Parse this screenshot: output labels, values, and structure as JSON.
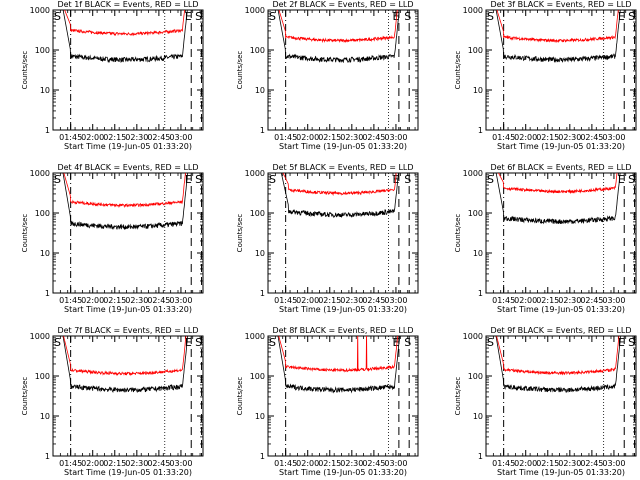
{
  "chart_data": [
    {
      "type": "line",
      "title": "Det 1f BLACK = Events, RED = LLD",
      "xlabel": "Start Time (19-Jun-05 01:33:20)",
      "ylabel": "Counts/sec",
      "ylim": [
        1,
        1000
      ],
      "yscale": "log",
      "yticks": [
        "1",
        "10",
        "100",
        "1000"
      ],
      "xticks": [
        "01:45",
        "02:00",
        "02:15",
        "02:30",
        "02:45",
        "03:00"
      ],
      "xtick_min": [
        12,
        27,
        42,
        57,
        72,
        87
      ],
      "xrange_min": [
        0,
        102
      ],
      "markers": [
        "S",
        "E",
        "S"
      ],
      "marker_min": [
        0,
        89,
        96
      ],
      "dotted_min": [
        76
      ],
      "dashdot_min": [
        12
      ],
      "dashed_min": [
        94,
        101
      ],
      "series": [
        {
          "name": "Events",
          "color": "#000000",
          "level": 70,
          "peak_min": 6,
          "rise_min": 88
        },
        {
          "name": "LLD",
          "color": "#ff0000",
          "level": 310,
          "peak_min": 6,
          "rise_min": 88
        }
      ]
    },
    {
      "type": "line",
      "title": "Det 2f BLACK = Events, RED = LLD",
      "xlabel": "Start Time (19-Jun-05 01:33:20)",
      "ylabel": "Counts/sec",
      "ylim": [
        1,
        1000
      ],
      "yscale": "log",
      "yticks": [
        "1",
        "10",
        "100",
        "1000"
      ],
      "xticks": [
        "01:45",
        "02:00",
        "02:15",
        "02:30",
        "02:45",
        "03:00"
      ],
      "xtick_min": [
        12,
        27,
        42,
        57,
        72,
        87
      ],
      "xrange_min": [
        0,
        102
      ],
      "markers": [
        "S",
        "E",
        "S"
      ],
      "marker_min": [
        0,
        84,
        92
      ],
      "dotted_min": [
        82
      ],
      "dashdot_min": [
        12
      ],
      "dashed_min": [
        89,
        96
      ],
      "series": [
        {
          "name": "Events",
          "color": "#000000",
          "level": 70,
          "peak_min": 6,
          "rise_min": 86
        },
        {
          "name": "LLD",
          "color": "#ff0000",
          "level": 210,
          "peak_min": 6,
          "rise_min": 86
        }
      ]
    },
    {
      "type": "line",
      "title": "Det 3f BLACK = Events, RED = LLD",
      "xlabel": "Start Time (19-Jun-05 01:33:20)",
      "ylabel": "Counts/sec",
      "ylim": [
        1,
        1000
      ],
      "yscale": "log",
      "yticks": [
        "1",
        "10",
        "100",
        "1000"
      ],
      "xticks": [
        "01:45",
        "02:00",
        "02:15",
        "02:30",
        "02:45",
        "03:00"
      ],
      "xtick_min": [
        12,
        27,
        42,
        57,
        72,
        87
      ],
      "xrange_min": [
        0,
        102
      ],
      "markers": [
        "S",
        "E",
        "S"
      ],
      "marker_min": [
        0,
        89,
        96
      ],
      "dotted_min": [
        80
      ],
      "dashdot_min": [
        12
      ],
      "dashed_min": [
        94,
        101
      ],
      "series": [
        {
          "name": "Events",
          "color": "#000000",
          "level": 70,
          "peak_min": 6,
          "rise_min": 88
        },
        {
          "name": "LLD",
          "color": "#ff0000",
          "level": 210,
          "peak_min": 6,
          "rise_min": 88
        }
      ]
    },
    {
      "type": "line",
      "title": "Det 4f BLACK = Events, RED = LLD",
      "xlabel": "Start Time (19-Jun-05 01:33:20)",
      "ylabel": "Counts/sec",
      "ylim": [
        1,
        1000
      ],
      "yscale": "log",
      "yticks": [
        "1",
        "10",
        "100",
        "1000"
      ],
      "xticks": [
        "01:45",
        "02:00",
        "02:15",
        "02:30",
        "02:45",
        "03:00"
      ],
      "xtick_min": [
        12,
        27,
        42,
        57,
        72,
        87
      ],
      "xrange_min": [
        0,
        102
      ],
      "markers": [
        "S",
        "E",
        "S"
      ],
      "marker_min": [
        0,
        89,
        96
      ],
      "dotted_min": [
        76
      ],
      "dashdot_min": [
        12
      ],
      "dashed_min": [
        94,
        101
      ],
      "series": [
        {
          "name": "Events",
          "color": "#000000",
          "level": 55,
          "peak_min": 6,
          "rise_min": 88
        },
        {
          "name": "LLD",
          "color": "#ff0000",
          "level": 190,
          "peak_min": 6,
          "rise_min": 88
        }
      ]
    },
    {
      "type": "line",
      "title": "Det 5f BLACK = Events, RED = LLD",
      "xlabel": "Start Time (19-Jun-05 01:33:20)",
      "ylabel": "Counts/sec",
      "ylim": [
        1,
        1000
      ],
      "yscale": "log",
      "yticks": [
        "1",
        "10",
        "100",
        "1000"
      ],
      "xticks": [
        "01:45",
        "02:00",
        "02:15",
        "02:30",
        "02:45",
        "03:00"
      ],
      "xtick_min": [
        12,
        27,
        42,
        57,
        72,
        87
      ],
      "xrange_min": [
        0,
        102
      ],
      "markers": [
        "S",
        "E",
        "S"
      ],
      "marker_min": [
        0,
        84,
        92
      ],
      "dotted_min": [
        82
      ],
      "dashdot_min": [
        12
      ],
      "dashed_min": [
        89,
        96
      ],
      "series": [
        {
          "name": "Events",
          "color": "#000000",
          "level": 110,
          "peak_min": 8,
          "rise_min": 86
        },
        {
          "name": "LLD",
          "color": "#ff0000",
          "level": 380,
          "peak_min": 8,
          "rise_min": 86
        }
      ]
    },
    {
      "type": "line",
      "title": "Det 6f BLACK = Events, RED = LLD",
      "xlabel": "Start Time (19-Jun-05 01:33:20)",
      "ylabel": "Counts/sec",
      "ylim": [
        1,
        1000
      ],
      "yscale": "log",
      "yticks": [
        "1",
        "10",
        "100",
        "1000"
      ],
      "xticks": [
        "01:45",
        "02:00",
        "02:15",
        "02:30",
        "02:45",
        "03:00"
      ],
      "xtick_min": [
        12,
        27,
        42,
        57,
        72,
        87
      ],
      "xrange_min": [
        0,
        102
      ],
      "markers": [
        "S",
        "E",
        "S"
      ],
      "marker_min": [
        0,
        89,
        96
      ],
      "dotted_min": [
        80
      ],
      "dashdot_min": [
        12
      ],
      "dashed_min": [
        94,
        101
      ],
      "series": [
        {
          "name": "Events",
          "color": "#000000",
          "level": 75,
          "peak_min": 6,
          "rise_min": 88
        },
        {
          "name": "LLD",
          "color": "#ff0000",
          "level": 420,
          "peak_min": 6,
          "rise_min": 88
        }
      ]
    },
    {
      "type": "line",
      "title": "Det 7f BLACK = Events, RED = LLD",
      "xlabel": "Start Time (19-Jun-05 01:33:20)",
      "ylabel": "Counts/sec",
      "ylim": [
        1,
        1000
      ],
      "yscale": "log",
      "yticks": [
        "1",
        "10",
        "100",
        "1000"
      ],
      "xticks": [
        "01:45",
        "02:00",
        "02:15",
        "02:30",
        "02:45",
        "03:00"
      ],
      "xtick_min": [
        12,
        27,
        42,
        57,
        72,
        87
      ],
      "xrange_min": [
        0,
        102
      ],
      "markers": [
        "S",
        "E",
        "S"
      ],
      "marker_min": [
        0,
        89,
        96
      ],
      "dotted_min": [
        76
      ],
      "dashdot_min": [
        12
      ],
      "dashed_min": [
        94,
        101
      ],
      "series": [
        {
          "name": "Events",
          "color": "#000000",
          "level": 55,
          "peak_min": 6,
          "rise_min": 88
        },
        {
          "name": "LLD",
          "color": "#ff0000",
          "level": 140,
          "peak_min": 6,
          "rise_min": 88
        }
      ]
    },
    {
      "type": "line",
      "title": "Det 8f BLACK = Events, RED = LLD",
      "xlabel": "Start Time (19-Jun-05 01:33:20)",
      "ylabel": "Counts/sec",
      "ylim": [
        1,
        1000
      ],
      "yscale": "log",
      "yticks": [
        "1",
        "10",
        "100",
        "1000"
      ],
      "xticks": [
        "01:45",
        "02:00",
        "02:15",
        "02:30",
        "02:45",
        "03:00"
      ],
      "xtick_min": [
        12,
        27,
        42,
        57,
        72,
        87
      ],
      "xrange_min": [
        0,
        102
      ],
      "markers": [
        "S",
        "E",
        "S"
      ],
      "marker_min": [
        0,
        84,
        92
      ],
      "dotted_min": [
        82
      ],
      "dashdot_min": [
        12
      ],
      "dashed_min": [
        89,
        96
      ],
      "series": [
        {
          "name": "Events",
          "color": "#000000",
          "level": 55,
          "peak_min": 6,
          "rise_min": 86
        },
        {
          "name": "LLD",
          "color": "#ff0000",
          "level": 170,
          "peak_min": 6,
          "rise_min": 86,
          "spike_min": [
            61,
            67
          ]
        }
      ]
    },
    {
      "type": "line",
      "title": "Det 9f BLACK = Events, RED = LLD",
      "xlabel": "Start Time (19-Jun-05 01:33:20)",
      "ylabel": "Counts/sec",
      "ylim": [
        1,
        1000
      ],
      "yscale": "log",
      "yticks": [
        "1",
        "10",
        "100",
        "1000"
      ],
      "xticks": [
        "01:45",
        "02:00",
        "02:15",
        "02:30",
        "02:45",
        "03:00"
      ],
      "xtick_min": [
        12,
        27,
        42,
        57,
        72,
        87
      ],
      "xrange_min": [
        0,
        102
      ],
      "markers": [
        "S",
        "E",
        "S"
      ],
      "marker_min": [
        0,
        89,
        96
      ],
      "dotted_min": [
        80
      ],
      "dashdot_min": [
        12
      ],
      "dashed_min": [
        94,
        101
      ],
      "series": [
        {
          "name": "Events",
          "color": "#000000",
          "level": 55,
          "peak_min": 6,
          "rise_min": 88
        },
        {
          "name": "LLD",
          "color": "#ff0000",
          "level": 145,
          "peak_min": 6,
          "rise_min": 88
        }
      ]
    }
  ]
}
